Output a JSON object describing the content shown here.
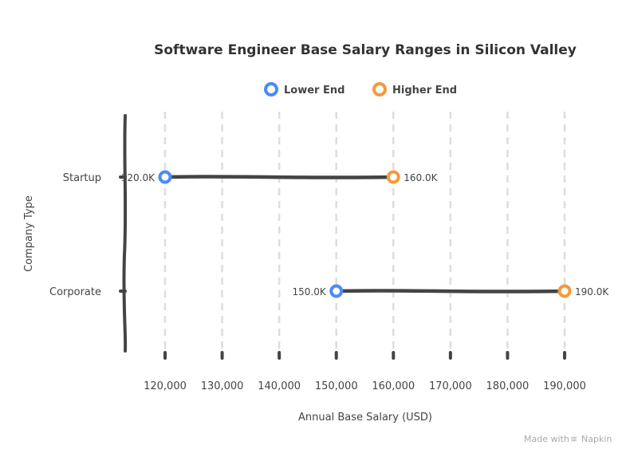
{
  "chart_data": {
    "type": "dumbbell",
    "title": "Software Engineer Base Salary Ranges in Silicon Valley",
    "xlabel": "Annual Base Salary (USD)",
    "ylabel": "Company Type",
    "xlim": [
      120000,
      190000
    ],
    "x_ticks": [
      120000,
      130000,
      140000,
      150000,
      160000,
      170000,
      180000,
      190000
    ],
    "x_tick_labels": [
      "120,000",
      "130,000",
      "140,000",
      "150,000",
      "160,000",
      "170,000",
      "180,000",
      "190,000"
    ],
    "categories": [
      "Startup",
      "Corporate"
    ],
    "series": [
      {
        "name": "Lower End",
        "color": "#4a8cf7",
        "values": [
          120000,
          150000
        ],
        "labels": [
          "120.0K",
          "150.0K"
        ]
      },
      {
        "name": "Higher End",
        "color": "#f59a3b",
        "values": [
          160000,
          190000
        ],
        "labels": [
          "160.0K",
          "190.0K"
        ]
      }
    ],
    "grid": "vertical dashed",
    "legend": "top-center"
  },
  "footer": {
    "made_with": "Made with",
    "brand": "Napkin"
  }
}
